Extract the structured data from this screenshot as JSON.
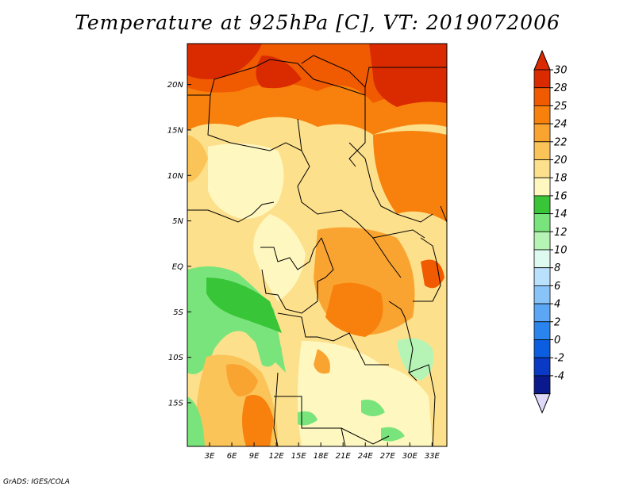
{
  "title": "Temperature at 925hPa [C], VT: 2019072006",
  "credit": "GrADS: IGES/COLA",
  "map": {
    "lat_labels": [
      "20N",
      "15N",
      "10N",
      "5N",
      "EQ",
      "5S",
      "10S",
      "15S"
    ],
    "lat_values": [
      20,
      15,
      10,
      5,
      0,
      -5,
      -10,
      -15
    ],
    "lon_labels": [
      "3E",
      "6E",
      "9E",
      "12E",
      "15E",
      "18E",
      "21E",
      "24E",
      "27E",
      "30E",
      "33E"
    ],
    "lon_values": [
      3,
      6,
      9,
      12,
      15,
      18,
      21,
      24,
      27,
      30,
      33
    ],
    "lon_range": [
      0,
      35
    ],
    "lat_range": [
      -19.8,
      24.5
    ]
  },
  "colorbar": {
    "labels": [
      "30",
      "28",
      "25",
      "24",
      "22",
      "20",
      "18",
      "16",
      "14",
      "12",
      "10",
      "8",
      "6",
      "4",
      "2",
      "0",
      "-2",
      "-4"
    ],
    "colors": [
      "#da2b00",
      "#f05a00",
      "#f8810d",
      "#f9a431",
      "#fbc458",
      "#fde08c",
      "#fef8c0",
      "#38c538",
      "#79e47b",
      "#b6f4b5",
      "#def9f0",
      "#b9e0fd",
      "#88c4f8",
      "#5ba6f5",
      "#2a84ee",
      "#0b5ee0",
      "#0a39c6",
      "#0a1a8c"
    ],
    "top_cap_color": "#da2b00",
    "bottom_cap_color": "#e0d8f8"
  }
}
